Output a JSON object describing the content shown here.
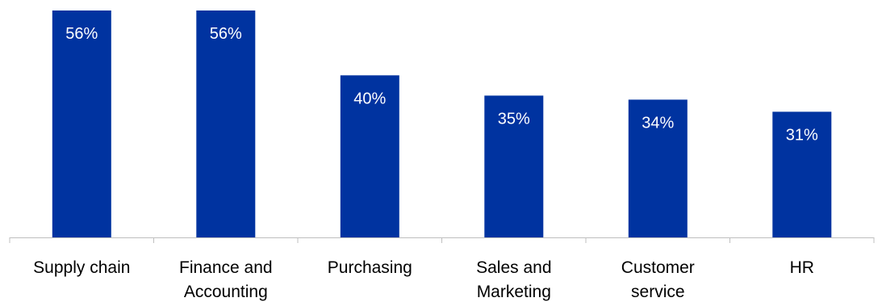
{
  "chart_data": {
    "type": "bar",
    "categories": [
      [
        "Supply chain"
      ],
      [
        "Finance and",
        "Accounting"
      ],
      [
        "Purchasing"
      ],
      [
        "Sales and",
        "Marketing"
      ],
      [
        "Customer",
        "service"
      ],
      [
        "HR"
      ]
    ],
    "values": [
      56,
      56,
      40,
      35,
      34,
      31
    ],
    "data_labels": [
      "56%",
      "56%",
      "40%",
      "35%",
      "34%",
      "31%"
    ],
    "value_unit": "%",
    "ylim": [
      0,
      56
    ],
    "grid": false,
    "legend": "none",
    "bar_color": "#0033A0",
    "label_color": "#ffffff",
    "axis_color": "#BFBFBF"
  }
}
